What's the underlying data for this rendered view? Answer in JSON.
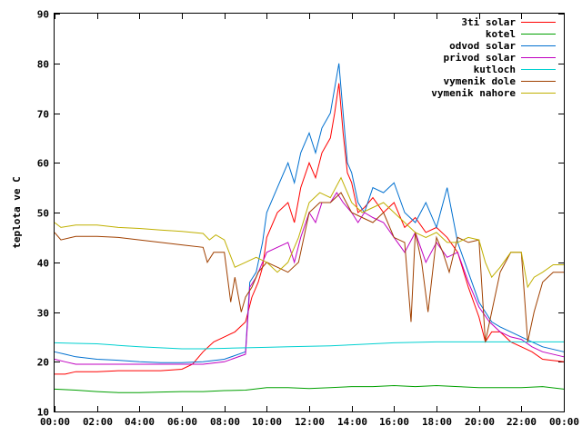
{
  "chart_data": {
    "type": "line",
    "title": "",
    "xlabel": "",
    "ylabel": "teplota ve C",
    "xlim": [
      "00:00",
      "00:00"
    ],
    "ylim": [
      10,
      90
    ],
    "x_tick_labels": [
      "00:00",
      "02:00",
      "04:00",
      "06:00",
      "08:00",
      "10:00",
      "12:00",
      "14:00",
      "16:00",
      "18:00",
      "20:00",
      "22:00",
      "00:00"
    ],
    "y_tick_labels": [
      "10",
      "20",
      "30",
      "40",
      "50",
      "60",
      "70",
      "80",
      "90"
    ],
    "grid": false,
    "legend_position": "top-right",
    "series": [
      {
        "name": "3ti solar",
        "color": "#ff0000",
        "x": [
          0,
          0.5,
          1,
          2,
          3,
          4,
          5,
          6,
          6.5,
          7,
          7.5,
          8,
          8.5,
          9,
          9.3,
          9.6,
          9.8,
          10,
          10.5,
          11,
          11.3,
          11.6,
          12,
          12.3,
          12.6,
          13,
          13.2,
          13.4,
          13.6,
          13.8,
          14,
          14.3,
          14.6,
          15,
          15.5,
          16,
          16.5,
          17,
          17.5,
          18,
          18.5,
          19,
          19.5,
          20,
          20.3,
          20.6,
          21,
          21.5,
          22,
          22.5,
          23,
          24
        ],
        "y": [
          17.5,
          17.5,
          18,
          18,
          18.2,
          18.2,
          18.2,
          18.5,
          19.5,
          22,
          24,
          25,
          26,
          28,
          33,
          36,
          39,
          45,
          50,
          52,
          48,
          55,
          60,
          57,
          62,
          65,
          70,
          76,
          66,
          58,
          56,
          50,
          51,
          53,
          50,
          52,
          47,
          49,
          46,
          47,
          45,
          42,
          35,
          29,
          24,
          26,
          26,
          24,
          23,
          22,
          20.5,
          20
        ]
      },
      {
        "name": "kotel",
        "color": "#00a000",
        "x": [
          0,
          1,
          2,
          3,
          4,
          5,
          6,
          7,
          8,
          9,
          10,
          11,
          12,
          13,
          14,
          15,
          16,
          17,
          18,
          19,
          20,
          21,
          22,
          23,
          24
        ],
        "y": [
          14.5,
          14.3,
          14,
          13.8,
          13.8,
          13.9,
          14,
          14,
          14.2,
          14.3,
          14.8,
          14.8,
          14.6,
          14.8,
          15,
          15,
          15.2,
          15,
          15.2,
          15,
          14.8,
          14.8,
          14.8,
          15,
          14.5
        ]
      },
      {
        "name": "odvod solar",
        "color": "#0070d0",
        "x": [
          0,
          0.5,
          1,
          2,
          3,
          4,
          5,
          6,
          7,
          8,
          9,
          9.2,
          9.5,
          9.8,
          10,
          10.5,
          11,
          11.3,
          11.6,
          12,
          12.3,
          12.6,
          13,
          13.2,
          13.4,
          13.6,
          13.8,
          14,
          14.3,
          14.6,
          15,
          15.5,
          16,
          16.5,
          17,
          17.5,
          18,
          18.5,
          19,
          19.5,
          20,
          20.3,
          20.6,
          21,
          21.5,
          22,
          22.5,
          23,
          24
        ],
        "y": [
          22,
          21.5,
          21,
          20.5,
          20.3,
          20,
          19.8,
          19.8,
          20,
          20.5,
          22,
          36,
          38,
          44,
          50,
          55,
          60,
          56,
          62,
          66,
          62,
          67,
          70,
          75,
          80,
          70,
          60,
          58,
          52,
          50,
          55,
          54,
          56,
          50,
          48,
          52,
          47,
          55,
          44,
          38,
          32,
          30,
          28,
          27,
          26,
          25,
          24,
          23,
          22
        ]
      },
      {
        "name": "privod solar",
        "color": "#c000c0",
        "x": [
          0,
          0.5,
          1,
          2,
          3,
          4,
          5,
          6,
          7,
          8,
          9,
          9.2,
          9.5,
          9.8,
          10,
          10.5,
          11,
          11.3,
          11.6,
          12,
          12.3,
          12.6,
          13,
          13.3,
          13.6,
          14,
          14.3,
          14.6,
          15,
          15.5,
          16,
          16.5,
          17,
          17.5,
          18,
          18.5,
          19,
          19.5,
          20,
          20.5,
          21,
          21.5,
          22,
          22.5,
          23,
          24
        ],
        "y": [
          20.5,
          20,
          19.5,
          19.5,
          19.5,
          19.5,
          19.5,
          19.5,
          19.5,
          20,
          21.5,
          35,
          37,
          40,
          42,
          43,
          44,
          40,
          45,
          50,
          48,
          52,
          52,
          54,
          52,
          50,
          48,
          50,
          49,
          48,
          45,
          42,
          46,
          40,
          44,
          41,
          42,
          36,
          31,
          28,
          26,
          25,
          24.5,
          23,
          22,
          21
        ]
      },
      {
        "name": "kutloch",
        "color": "#00d0d0",
        "x": [
          0,
          1,
          2,
          3,
          4,
          5,
          6,
          7,
          8,
          9,
          10,
          11,
          12,
          13,
          14,
          15,
          16,
          17,
          18,
          19,
          20,
          21,
          22,
          23,
          24
        ],
        "y": [
          23.8,
          23.7,
          23.6,
          23.3,
          23,
          22.8,
          22.6,
          22.6,
          22.7,
          22.8,
          22.9,
          23,
          23.1,
          23.2,
          23.4,
          23.6,
          23.8,
          23.9,
          24,
          24,
          24,
          24,
          24,
          24,
          24
        ]
      },
      {
        "name": "vymenik dole",
        "color": "#a04000",
        "x": [
          0,
          0.3,
          1,
          2,
          3,
          4,
          5,
          6,
          7,
          7.2,
          7.5,
          8,
          8.3,
          8.5,
          8.8,
          9,
          9.3,
          9.6,
          10,
          10.5,
          11,
          11.5,
          12,
          12.5,
          13,
          13.5,
          14,
          14.5,
          15,
          15.5,
          16,
          16.5,
          16.8,
          17,
          17.3,
          17.6,
          18,
          18.3,
          18.6,
          19,
          19.5,
          20,
          20.3,
          20.6,
          21,
          21.5,
          22,
          22.3,
          22.6,
          23,
          23.5,
          24
        ],
        "y": [
          46,
          44.5,
          45.2,
          45.2,
          45,
          44.5,
          44,
          43.5,
          43,
          40,
          42,
          42,
          32,
          37,
          30,
          33,
          35,
          38,
          40,
          39,
          38,
          40,
          50,
          52,
          52,
          54,
          50,
          49,
          48,
          50,
          45,
          44,
          28,
          46,
          40,
          30,
          45,
          42,
          38,
          45,
          44,
          44.5,
          24,
          30,
          38,
          42,
          42,
          24,
          30,
          36,
          38,
          38
        ]
      },
      {
        "name": "vymenik nahore",
        "color": "#c0b000",
        "x": [
          0,
          0.3,
          1,
          2,
          3,
          4,
          5,
          6,
          7,
          7.3,
          7.6,
          8,
          8.5,
          9,
          9.5,
          10,
          10.5,
          11,
          11.5,
          12,
          12.5,
          13,
          13.5,
          14,
          14.5,
          15,
          15.5,
          16,
          16.5,
          17,
          17.5,
          18,
          18.5,
          19,
          19.5,
          20,
          20.3,
          20.6,
          21,
          21.5,
          22,
          22.3,
          22.6,
          23,
          23.5,
          24
        ],
        "y": [
          48,
          47,
          47.5,
          47.5,
          47,
          46.8,
          46.5,
          46.2,
          45.8,
          44.5,
          45.5,
          44.5,
          39,
          40,
          41,
          40,
          38,
          40,
          45,
          52,
          54,
          53,
          57,
          52,
          50,
          51,
          52,
          50,
          48,
          46,
          45,
          46,
          44,
          44,
          45,
          44.5,
          40,
          37,
          39,
          42,
          42,
          35,
          37,
          38,
          39.5,
          39.5
        ]
      }
    ]
  }
}
